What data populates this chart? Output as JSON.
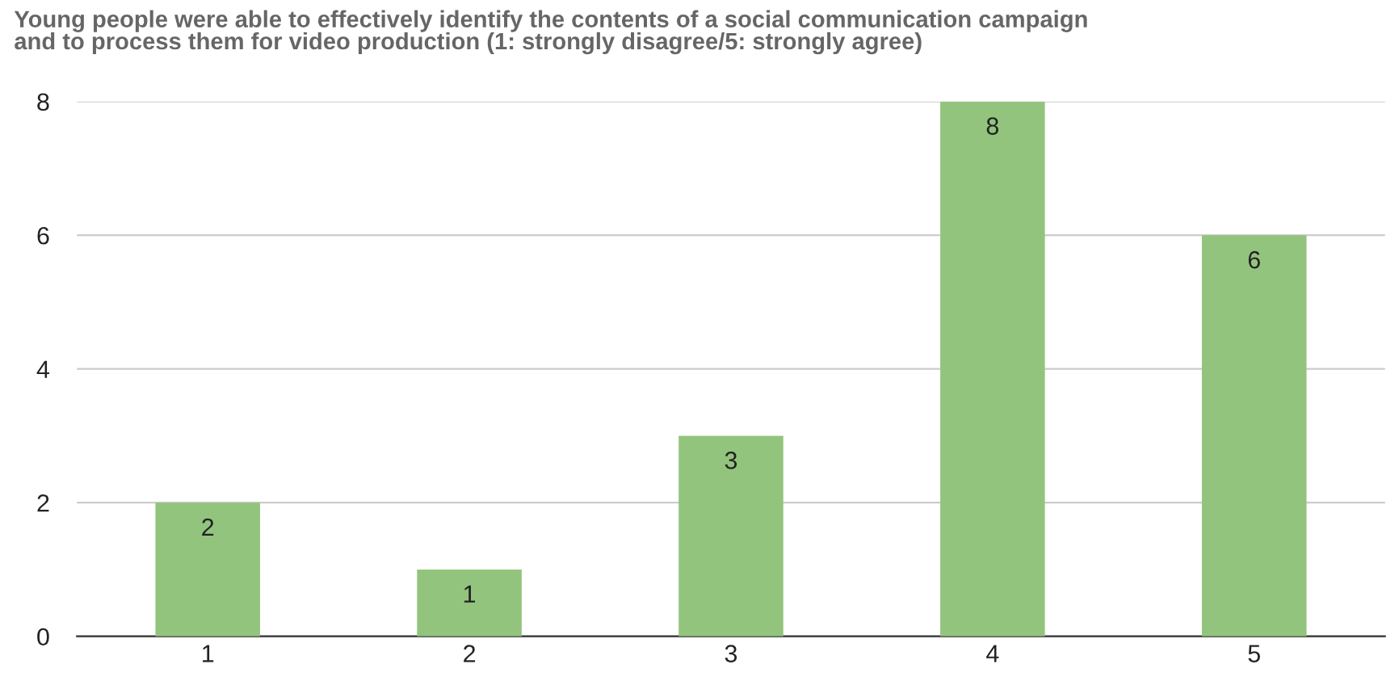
{
  "chart_data": {
    "type": "bar",
    "title": "Young people were able to effectively identify the contents of a social communication campaign\nand to process them for video production (1: strongly disagree/5: strongly agree)",
    "categories": [
      "1",
      "2",
      "3",
      "4",
      "5"
    ],
    "values": [
      2,
      1,
      3,
      8,
      6
    ],
    "color": "#93c47d",
    "ylim": [
      0,
      8
    ],
    "yticks": [
      0,
      2,
      4,
      6,
      8
    ],
    "grid": "y",
    "data_labels": true
  }
}
